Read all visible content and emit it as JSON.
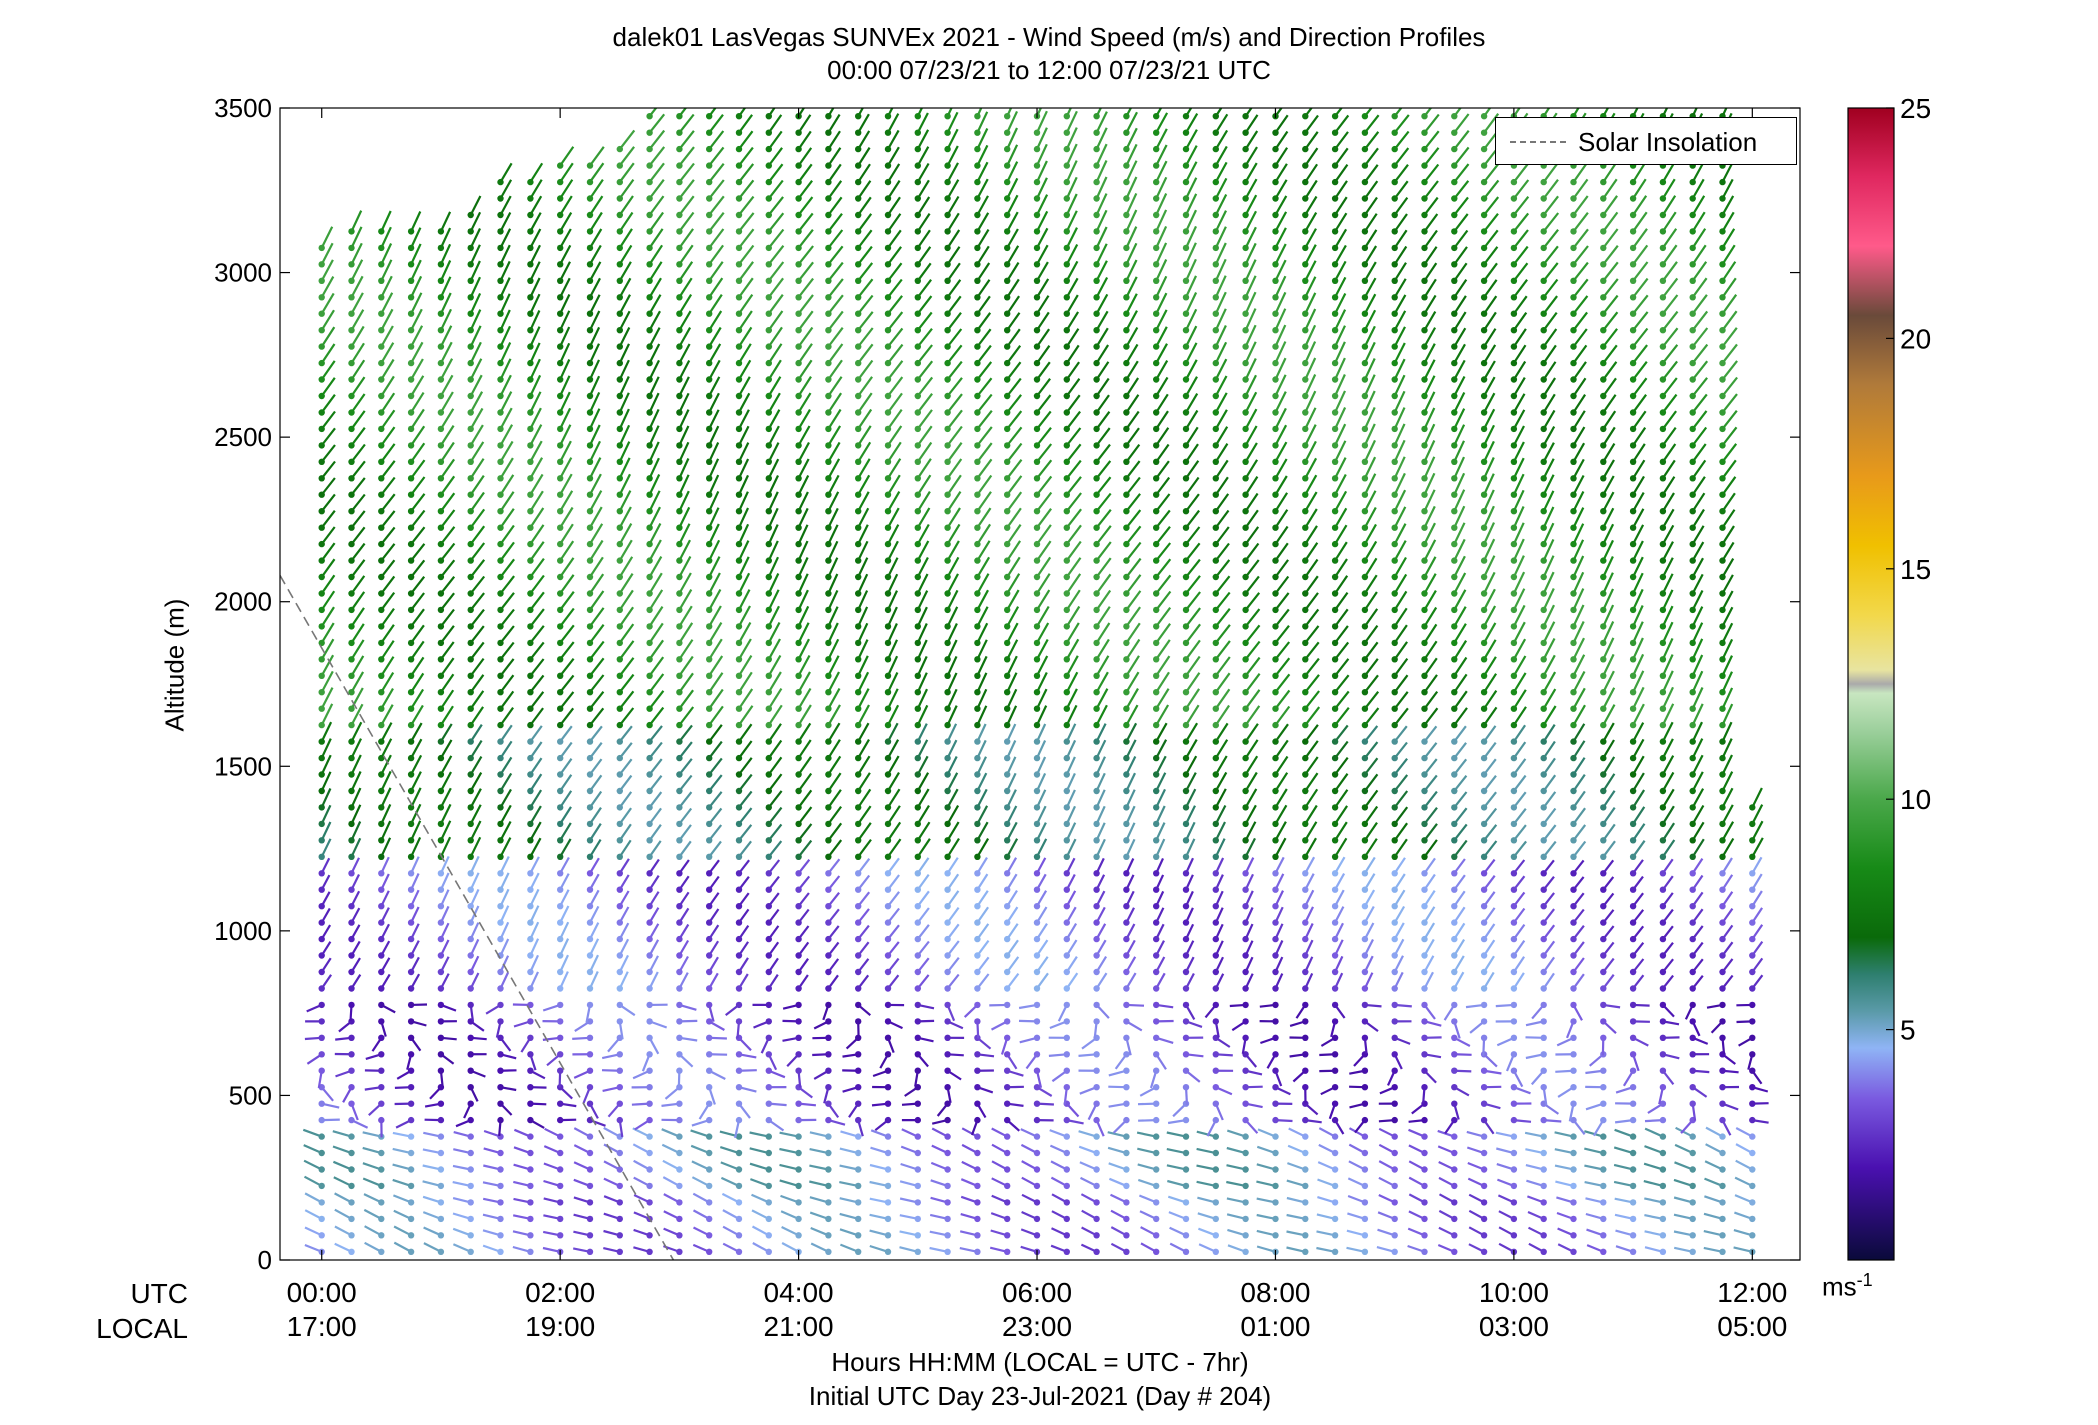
{
  "chart_data": {
    "type": "wind-barb-profile",
    "title": "dalek01 LasVegas SUNVEx 2021 - Wind Speed (m/s) and Direction Profiles",
    "subtitle": "00:00 07/23/21 to 12:00 07/23/21  UTC",
    "ylabel": "Altitude (m)",
    "xlabel": "Hours HH:MM  (LOCAL = UTC - 7hr)",
    "xlabel2": "Initial UTC Day 23-Jul-2021 (Day # 204)",
    "row_label_utc": "UTC",
    "row_label_local": "LOCAL",
    "ylim": [
      0,
      3500
    ],
    "y_ticks": [
      0,
      500,
      1000,
      1500,
      2000,
      2500,
      3000,
      3500
    ],
    "xlim_hours": [
      -0.35,
      12.4
    ],
    "x_ticks_hours": [
      0,
      2,
      4,
      6,
      8,
      10,
      12
    ],
    "x_tick_labels_utc": [
      "00:00",
      "02:00",
      "04:00",
      "06:00",
      "08:00",
      "10:00",
      "12:00"
    ],
    "x_tick_labels_local": [
      "17:00",
      "19:00",
      "21:00",
      "23:00",
      "01:00",
      "03:00",
      "05:00"
    ],
    "legend_label": "Solar Insolation",
    "legend_position": "top-right",
    "solar_insolation_line": {
      "x_hours": [
        -0.35,
        2.95
      ],
      "y_m": [
        2080,
        0
      ],
      "style": "dashed",
      "color": "#777777"
    },
    "colorbar": {
      "label": "ms",
      "label_exponent": "-1",
      "range": [
        0,
        25
      ],
      "ticks": [
        5,
        10,
        15,
        20,
        25
      ],
      "colormap": [
        {
          "v": 0,
          "c": "#0a0a3a"
        },
        {
          "v": 2,
          "c": "#4a10b0"
        },
        {
          "v": 3.5,
          "c": "#7a5ae0"
        },
        {
          "v": 4.6,
          "c": "#8fb4f5"
        },
        {
          "v": 5.4,
          "c": "#5a9aa8"
        },
        {
          "v": 6.2,
          "c": "#2e7f6f"
        },
        {
          "v": 7,
          "c": "#0a6a0a"
        },
        {
          "v": 8.5,
          "c": "#178a17"
        },
        {
          "v": 10,
          "c": "#4aa84a"
        },
        {
          "v": 11.5,
          "c": "#9dd09d"
        },
        {
          "v": 12.3,
          "c": "#c8e6c0"
        },
        {
          "v": 12.5,
          "c": "#aaaaaa"
        },
        {
          "v": 12.8,
          "c": "#e8e4a0"
        },
        {
          "v": 14,
          "c": "#f2d84a"
        },
        {
          "v": 15.5,
          "c": "#f0c000"
        },
        {
          "v": 17,
          "c": "#e89a1a"
        },
        {
          "v": 19,
          "c": "#b07a3a"
        },
        {
          "v": 20.5,
          "c": "#6a4a3a"
        },
        {
          "v": 22,
          "c": "#ff5a8a"
        },
        {
          "v": 23.5,
          "c": "#e02860"
        },
        {
          "v": 25,
          "c": "#a00020"
        }
      ]
    },
    "profiles": {
      "interval_minutes": 15,
      "first_profile_hours": 0,
      "last_profile_hours": 12,
      "altitude_step_m": 50,
      "speed_layers": [
        {
          "altitude_max_m": 200,
          "speed_ms": 4.0,
          "direction": "northwesterly"
        },
        {
          "altitude_max_m": 400,
          "speed_ms": 4.5,
          "direction": "northwesterly"
        },
        {
          "altitude_max_m": 800,
          "speed_ms": 3.0,
          "direction": "variable"
        },
        {
          "altitude_max_m": 1200,
          "speed_ms": 3.5,
          "direction": "southerly"
        },
        {
          "altitude_max_m": 1600,
          "speed_ms": 6.5,
          "direction": "southerly"
        },
        {
          "altitude_max_m": 3500,
          "speed_ms": 8.5,
          "direction": "southerly"
        }
      ],
      "top_of_data_m": [
        {
          "hours": 0.0,
          "top_m": 3120
        },
        {
          "hours": 1.0,
          "top_m": 3150
        },
        {
          "hours": 1.5,
          "top_m": 3280
        },
        {
          "hours": 2.5,
          "top_m": 3380
        },
        {
          "hours": 2.75,
          "top_m": 3500
        },
        {
          "hours": 11.75,
          "top_m": 3500
        },
        {
          "hours": 12.0,
          "top_m": 1380
        }
      ]
    }
  }
}
